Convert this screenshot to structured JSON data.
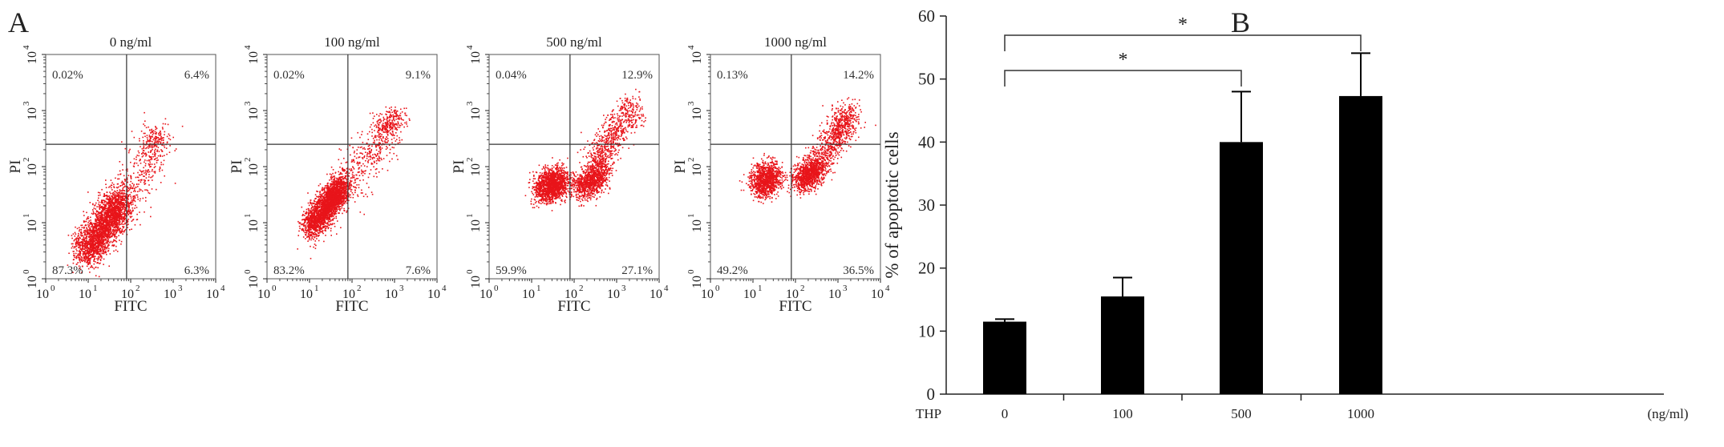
{
  "panel_labels": {
    "a": "A",
    "b": "B"
  },
  "colors": {
    "dots": "#e8141a",
    "axis": "#222222",
    "bar": "#000000",
    "quadrant_lines": "#333333"
  },
  "chart_data": [
    {
      "type": "scatter",
      "title": "0 ng/ml",
      "xlabel": "FITC",
      "ylabel": "PI",
      "scale": "log",
      "xlim": [
        1,
        10000
      ],
      "ylim": [
        1,
        10000
      ],
      "ticks": [
        "10",
        "10",
        "10",
        "10",
        "10"
      ],
      "tick_exponents": [
        "0",
        "1",
        "2",
        "3",
        "4"
      ],
      "gate": {
        "x": 80,
        "y": 250
      },
      "quadrants": {
        "upper_left": "0.02%",
        "upper_right": "6.4%",
        "lower_left": "87.3%",
        "lower_right": "6.3%"
      },
      "clusters": [
        {
          "x": [
            8,
            14,
            24,
            40,
            55
          ],
          "y": [
            3,
            5,
            9,
            16,
            22
          ],
          "spread": 0.18,
          "n": 2600
        },
        {
          "x": [
            60,
            120,
            250,
            500
          ],
          "y": [
            25,
            60,
            150,
            300
          ],
          "spread": 0.22,
          "n": 380
        },
        {
          "x": [
            250,
            350,
            450
          ],
          "y": [
            260,
            300,
            330
          ],
          "spread": 0.1,
          "n": 120
        }
      ]
    },
    {
      "type": "scatter",
      "title": "100 ng/ml",
      "xlabel": "FITC",
      "ylabel": "PI",
      "scale": "log",
      "xlim": [
        1,
        10000
      ],
      "ylim": [
        1,
        10000
      ],
      "ticks": [
        "10",
        "10",
        "10",
        "10",
        "10"
      ],
      "tick_exponents": [
        "0",
        "1",
        "2",
        "3",
        "4"
      ],
      "gate": {
        "x": 80,
        "y": 250
      },
      "quadrants": {
        "upper_left": "0.02%",
        "upper_right": "9.1%",
        "lower_left": "83.2%",
        "lower_right": "7.6%"
      },
      "clusters": [
        {
          "x": [
            10,
            17,
            27,
            40,
            55
          ],
          "y": [
            8,
            14,
            22,
            33,
            45
          ],
          "spread": 0.13,
          "n": 2600
        },
        {
          "x": [
            60,
            150,
            350,
            800
          ],
          "y": [
            40,
            100,
            250,
            550
          ],
          "spread": 0.2,
          "n": 420
        },
        {
          "x": [
            500,
            800,
            1200
          ],
          "y": [
            400,
            600,
            900
          ],
          "spread": 0.12,
          "n": 220
        }
      ]
    },
    {
      "type": "scatter",
      "title": "500 ng/ml",
      "xlabel": "FITC",
      "ylabel": "PI",
      "scale": "log",
      "xlim": [
        1,
        10000
      ],
      "ylim": [
        1,
        10000
      ],
      "ticks": [
        "10",
        "10",
        "10",
        "10",
        "10"
      ],
      "tick_exponents": [
        "0",
        "1",
        "2",
        "3",
        "4"
      ],
      "gate": {
        "x": 80,
        "y": 250
      },
      "quadrants": {
        "upper_left": "0.04%",
        "upper_right": "12.9%",
        "lower_left": "59.9%",
        "lower_right": "27.1%"
      },
      "clusters": [
        {
          "x": [
            15,
            30,
            50
          ],
          "y": [
            40,
            48,
            56
          ],
          "spread": 0.14,
          "n": 1500
        },
        {
          "x": [
            120,
            200,
            300,
            400
          ],
          "y": [
            40,
            52,
            65,
            80
          ],
          "spread": 0.13,
          "n": 1000
        },
        {
          "x": [
            300,
            600,
            1200,
            2500
          ],
          "y": [
            100,
            250,
            600,
            1300
          ],
          "spread": 0.16,
          "n": 700
        }
      ]
    },
    {
      "type": "scatter",
      "title": "1000 ng/ml",
      "xlabel": "FITC",
      "ylabel": "PI",
      "scale": "log",
      "xlim": [
        1,
        10000
      ],
      "ylim": [
        1,
        10000
      ],
      "ticks": [
        "10",
        "10",
        "10",
        "10",
        "10"
      ],
      "tick_exponents": [
        "0",
        "1",
        "2",
        "3",
        "4"
      ],
      "gate": {
        "x": 80,
        "y": 250
      },
      "quadrants": {
        "upper_left": "0.13%",
        "upper_right": "14.2%",
        "lower_left": "49.2%",
        "lower_right": "36.5%"
      },
      "clusters": [
        {
          "x": [
            12,
            20,
            30
          ],
          "y": [
            50,
            60,
            70
          ],
          "spread": 0.14,
          "n": 1100
        },
        {
          "x": [
            120,
            180,
            250,
            350
          ],
          "y": [
            55,
            70,
            85,
            100
          ],
          "spread": 0.13,
          "n": 1000
        },
        {
          "x": [
            350,
            700,
            1200,
            2000
          ],
          "y": [
            120,
            280,
            550,
            900
          ],
          "spread": 0.15,
          "n": 800
        }
      ]
    },
    {
      "type": "bar",
      "xlabel_prefix": "THP",
      "unit": "(ng/ml)",
      "ylabel": "% of apoptotic cells",
      "categories": [
        "0",
        "100",
        "500",
        "1000"
      ],
      "values": [
        11.5,
        15.5,
        40,
        47.3
      ],
      "errors": [
        0.4,
        3,
        8,
        6.8
      ],
      "ylim": [
        0,
        60
      ],
      "yticks": [
        "0",
        "10",
        "20",
        "30",
        "40",
        "50",
        "60"
      ],
      "significance": [
        {
          "from": 0,
          "to": 2,
          "label": "*"
        },
        {
          "from": 0,
          "to": 3,
          "label": "*"
        }
      ]
    }
  ]
}
